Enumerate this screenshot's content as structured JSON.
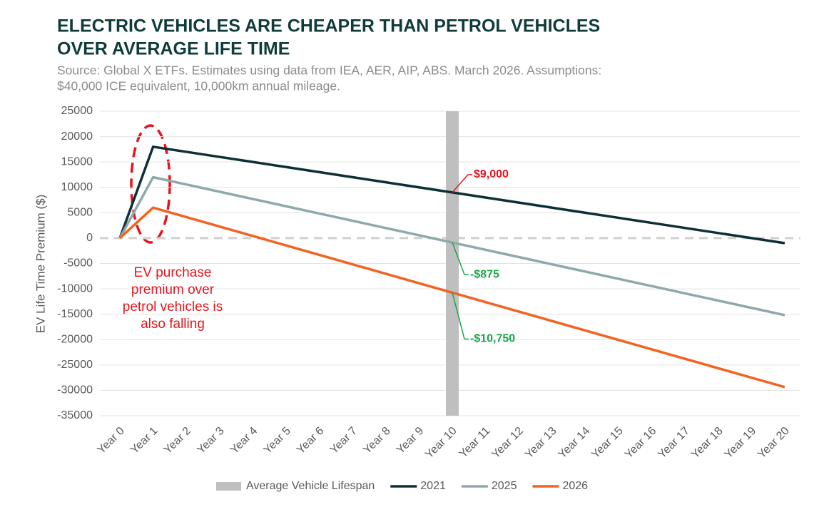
{
  "chart_data": {
    "type": "line",
    "title": [
      "ELECTRIC VEHICLES ARE CHEAPER THAN PETROL VEHICLES",
      "OVER AVERAGE LIFE TIME"
    ],
    "subtitle": [
      "Source: Global X ETFs. Estimates using data from IEA, AER, AIP, ABS. March 2026. Assumptions:",
      "$40,000 ICE equivalent, 10,000km annual mileage."
    ],
    "y_label": "EV Life Time Premium ($)",
    "categories": [
      "Year 0",
      "Year 1",
      "Year 2",
      "Year 3",
      "Year 4",
      "Year 5",
      "Year 6",
      "Year 7",
      "Year 8",
      "Year 9",
      "Year 10",
      "Year 11",
      "Year 12",
      "Year 13",
      "Year 14",
      "Year 15",
      "Year 16",
      "Year 17",
      "Year 18",
      "Year 19",
      "Year 20"
    ],
    "band": {
      "name": "Average Vehicle Lifespan",
      "category": "Year 10",
      "color": "#bfbfbf"
    },
    "series": [
      {
        "name": "2021",
        "color": "#0d3037",
        "values": [
          0,
          18000,
          17000,
          16000,
          15000,
          14000,
          13000,
          12000,
          11000,
          10000,
          9000,
          8000,
          7000,
          6000,
          5000,
          4000,
          3000,
          2000,
          1000,
          0,
          -1000
        ]
      },
      {
        "name": "2025",
        "color": "#8fa9aa",
        "values": [
          0,
          12000,
          10569,
          9139,
          7708,
          6278,
          4847,
          3417,
          1986,
          556,
          -875,
          -2306,
          -3736,
          -5167,
          -6597,
          -8028,
          -9458,
          -10889,
          -12319,
          -13750,
          -15181
        ]
      },
      {
        "name": "2026",
        "color": "#f26322",
        "values": [
          0,
          6000,
          4139,
          2278,
          417,
          -1444,
          -3306,
          -5167,
          -7028,
          -8889,
          -10750,
          -12611,
          -14472,
          -16333,
          -18194,
          -20056,
          -21917,
          -23778,
          -25639,
          -27500,
          -29361
        ]
      }
    ],
    "annotations": [
      {
        "label": "$9,000",
        "value": 9000,
        "color": "#e8141c"
      },
      {
        "label": "-$875",
        "value": -875,
        "color": "#1aa64a"
      },
      {
        "label": "-$10,750",
        "value": -10750,
        "color": "#1aa64a"
      }
    ],
    "note": {
      "lines": [
        "EV purchase",
        "premium over",
        "petrol vehicles is",
        "also falling"
      ],
      "color": "#e8141c"
    },
    "ylim": [
      -35000,
      25000
    ],
    "yticks": [
      -35000,
      -30000,
      -25000,
      -20000,
      -15000,
      -10000,
      -5000,
      0,
      5000,
      10000,
      15000,
      20000,
      25000
    ],
    "grid": true,
    "zero_line": "dashed",
    "legend": "bottom"
  }
}
